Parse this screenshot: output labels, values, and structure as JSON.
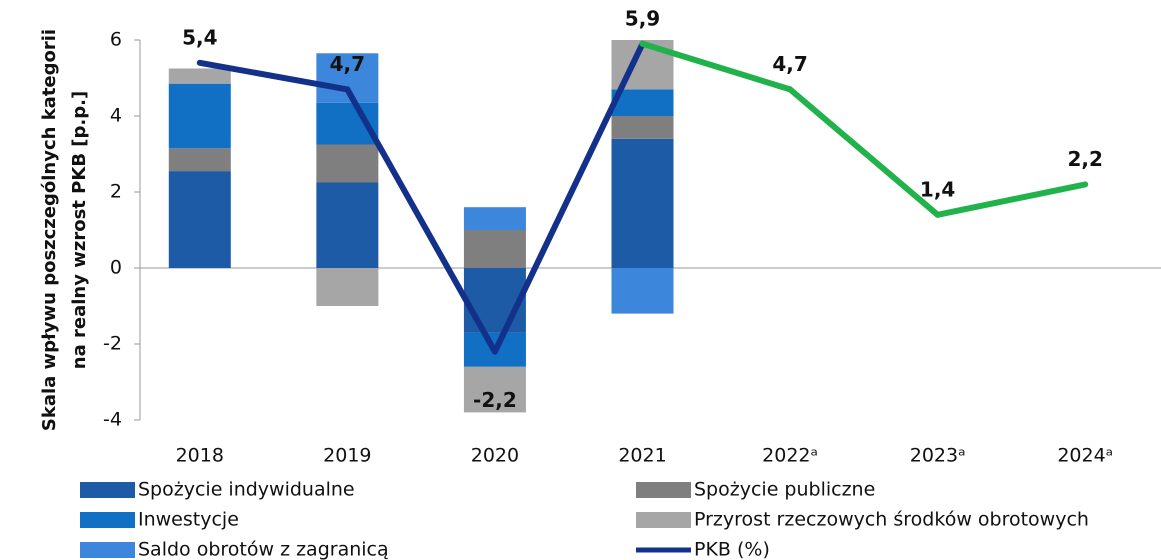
{
  "chart_data": {
    "type": "stacked-bar-line",
    "ylabel": [
      "Skala wpływu poszczególnych kategorii",
      "na realny wzrost PKB [p.p.]"
    ],
    "categories": [
      "2018",
      "2019",
      "2020",
      "2021",
      "2022ᵃ",
      "2023ᵃ",
      "2024ᵃ"
    ],
    "ylim": [
      -4,
      6
    ],
    "yticks": [
      -4,
      -2,
      0,
      2,
      4,
      6
    ],
    "grid": false,
    "series": [
      {
        "name": "Spożycie indywidualne",
        "color": "#1d5ba6",
        "values": [
          2.55,
          2.25,
          -1.7,
          3.4,
          null,
          null,
          null
        ]
      },
      {
        "name": "Spożycie publiczne",
        "color": "#7f7f7f",
        "values": [
          0.6,
          1.0,
          1.0,
          0.6,
          null,
          null,
          null
        ]
      },
      {
        "name": "Inwestycje",
        "color": "#1170c4",
        "values": [
          1.7,
          1.1,
          -0.9,
          0.7,
          null,
          null,
          null
        ]
      },
      {
        "name": "Przyrost rzeczowych środków obrotowych",
        "color": "#a6a6a6",
        "values": [
          0.4,
          -1.0,
          -1.2,
          1.3,
          null,
          null,
          null
        ]
      },
      {
        "name": "Saldo obrotów z zagranicą",
        "color": "#3c87dc",
        "values": [
          0,
          1.3,
          0.6,
          -1.2,
          null,
          null,
          null
        ]
      }
    ],
    "line": {
      "name": "PKB (%)",
      "color": "#13318a",
      "values": [
        5.4,
        4.7,
        -2.2,
        5.9,
        4.7,
        1.4,
        2.2
      ],
      "value_labels": [
        "5,4",
        "4,7",
        "-2,2",
        "5,9",
        "4,7",
        "1,4",
        "2,2"
      ],
      "point_colors": [
        "#13318a",
        "#13318a",
        "#13318a",
        "#13318a",
        "#22b24c",
        "#22b24c",
        "#22b24c"
      ]
    }
  }
}
